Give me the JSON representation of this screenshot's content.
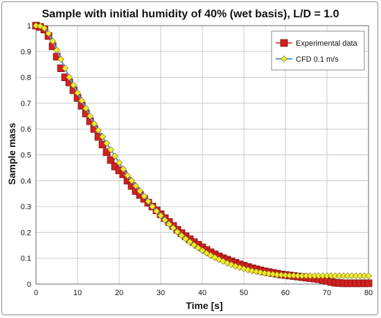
{
  "chart_data": {
    "type": "line",
    "title": "Sample with initial humidity of 40% (wet basis), L/D = 1.0",
    "xlabel": "Time [s]",
    "ylabel": "Sample mass",
    "xlim": [
      0,
      80
    ],
    "ylim": [
      0,
      1
    ],
    "xticks": [
      0,
      10,
      20,
      30,
      40,
      50,
      60,
      70,
      80
    ],
    "yticks": [
      0,
      0.1,
      0.2,
      0.3,
      0.4,
      0.5,
      0.6,
      0.7,
      0.8,
      0.9,
      1
    ],
    "grid": true,
    "legend_position": "top-right",
    "series": [
      {
        "name": "Experimental data",
        "marker": "square",
        "color": "#d42020",
        "x": [
          0,
          1,
          2,
          3,
          4,
          5,
          6,
          7,
          8,
          9,
          10,
          11,
          12,
          13,
          14,
          15,
          16,
          17,
          18,
          19,
          20,
          21,
          22,
          23,
          24,
          25,
          26,
          27,
          28,
          29,
          30,
          31,
          32,
          33,
          34,
          35,
          36,
          37,
          38,
          39,
          40,
          41,
          42,
          43,
          44,
          45,
          46,
          47,
          48,
          49,
          50,
          51,
          52,
          53,
          54,
          55,
          56,
          57,
          58,
          59,
          60,
          61,
          62,
          63,
          64,
          65,
          66,
          67,
          68,
          69,
          70,
          71,
          72,
          73,
          74,
          75,
          76,
          77,
          78,
          79,
          80
        ],
        "y": [
          1.0,
          0.995,
          0.985,
          0.96,
          0.92,
          0.88,
          0.835,
          0.8,
          0.78,
          0.75,
          0.72,
          0.69,
          0.66,
          0.63,
          0.6,
          0.57,
          0.54,
          0.51,
          0.48,
          0.455,
          0.44,
          0.425,
          0.4,
          0.38,
          0.36,
          0.345,
          0.33,
          0.315,
          0.3,
          0.285,
          0.27,
          0.255,
          0.24,
          0.225,
          0.21,
          0.197,
          0.185,
          0.173,
          0.162,
          0.152,
          0.142,
          0.132,
          0.123,
          0.115,
          0.107,
          0.1,
          0.094,
          0.088,
          0.082,
          0.076,
          0.071,
          0.066,
          0.061,
          0.057,
          0.053,
          0.049,
          0.046,
          0.043,
          0.04,
          0.037,
          0.035,
          0.033,
          0.031,
          0.029,
          0.027,
          0.025,
          0.023,
          0.021,
          0.019,
          0.016,
          0.012,
          0.008,
          0.005,
          0.004,
          0.003,
          0.003,
          0.003,
          0.003,
          0.003,
          0.003,
          0.003
        ]
      },
      {
        "name": "CFD 0.1 m/s",
        "marker": "diamond",
        "color": "#f3ea2c",
        "line_color": "#5b9bd5",
        "x": [
          0,
          1,
          2,
          3,
          4,
          5,
          6,
          7,
          8,
          9,
          10,
          11,
          12,
          13,
          14,
          15,
          16,
          17,
          18,
          19,
          20,
          21,
          22,
          23,
          24,
          25,
          26,
          27,
          28,
          29,
          30,
          31,
          32,
          33,
          34,
          35,
          36,
          37,
          38,
          39,
          40,
          41,
          42,
          43,
          44,
          45,
          46,
          47,
          48,
          49,
          50,
          51,
          52,
          53,
          54,
          55,
          56,
          57,
          58,
          59,
          60,
          61,
          62,
          63,
          64,
          65,
          66,
          67,
          68,
          69,
          70,
          71,
          72,
          73,
          74,
          75,
          76,
          77,
          78,
          79,
          80
        ],
        "y": [
          1.0,
          0.998,
          0.99,
          0.97,
          0.94,
          0.905,
          0.87,
          0.835,
          0.8,
          0.77,
          0.74,
          0.71,
          0.68,
          0.65,
          0.62,
          0.595,
          0.57,
          0.545,
          0.52,
          0.495,
          0.47,
          0.445,
          0.42,
          0.4,
          0.38,
          0.36,
          0.34,
          0.32,
          0.3,
          0.282,
          0.265,
          0.248,
          0.232,
          0.217,
          0.202,
          0.188,
          0.175,
          0.163,
          0.151,
          0.14,
          0.13,
          0.12,
          0.111,
          0.103,
          0.095,
          0.088,
          0.081,
          0.075,
          0.069,
          0.064,
          0.059,
          0.055,
          0.051,
          0.048,
          0.045,
          0.042,
          0.04,
          0.038,
          0.036,
          0.035,
          0.034,
          0.033,
          0.033,
          0.032,
          0.032,
          0.032,
          0.032,
          0.032,
          0.032,
          0.032,
          0.032,
          0.032,
          0.032,
          0.032,
          0.032,
          0.032,
          0.032,
          0.032,
          0.032,
          0.032,
          0.032
        ]
      }
    ]
  }
}
